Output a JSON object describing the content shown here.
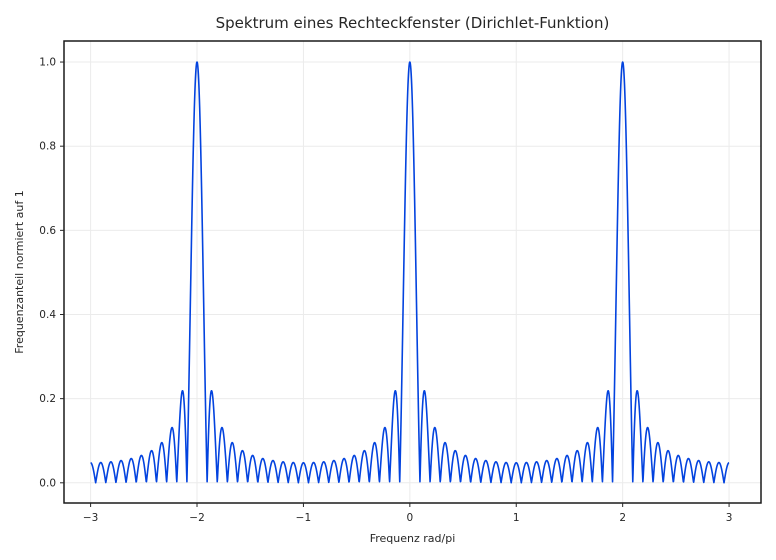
{
  "chart_data": {
    "type": "line",
    "title": "Spektrum eines Rechteckfenster (Dirichlet-Funktion)",
    "xlabel": "Frequenz rad/pi",
    "ylabel": "Frequenzanteil normiert auf 1",
    "xlim": [
      -3.25,
      3.3
    ],
    "ylim": [
      -0.048,
      1.05
    ],
    "xticks": [
      -3,
      -2,
      -1,
      0,
      1,
      2,
      3
    ],
    "xtick_labels": [
      "−3",
      "−2",
      "−1",
      "0",
      "1",
      "2",
      "3"
    ],
    "yticks": [
      0.0,
      0.2,
      0.4,
      0.6,
      0.8,
      1.0
    ],
    "ytick_labels": [
      "0.0",
      "0.2",
      "0.4",
      "0.6",
      "0.8",
      "1.0"
    ],
    "grid": true,
    "series": [
      {
        "function": "abs(diric(pi*x, 21))",
        "x_range": [
          -3,
          3
        ],
        "n_points": 2400,
        "color": "#0343df",
        "peaks": [
          [
            -2,
            1.0
          ],
          [
            0,
            1.0
          ],
          [
            2,
            1.0
          ]
        ],
        "first_sidelobe": 0.22
      }
    ]
  }
}
